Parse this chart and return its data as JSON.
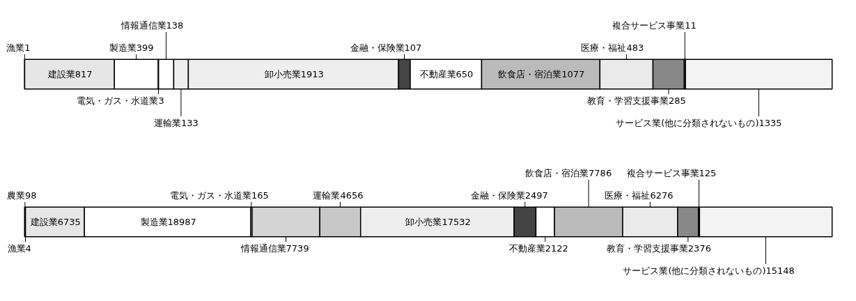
{
  "chart_data": [
    {
      "type": "bar",
      "orientation": "horizontal",
      "stacked": true,
      "categories": [
        null
      ],
      "data_labels": true,
      "tick_labels": false,
      "series": [
        {
          "name": "漁業",
          "color": "#ffffff",
          "values": [
            1
          ]
        },
        {
          "name": "建設業",
          "color": "#e6e6e6",
          "values": [
            817
          ]
        },
        {
          "name": "製造業",
          "color": "#ffffff",
          "values": [
            399
          ]
        },
        {
          "name": "電気・ガス・水道業",
          "color": "#d9d9d9",
          "values": [
            3
          ]
        },
        {
          "name": "情報通信業",
          "color": "#ffffff",
          "values": [
            138
          ]
        },
        {
          "name": "運輸業",
          "color": "#eeeeee",
          "values": [
            133
          ]
        },
        {
          "name": "卸小売業",
          "color": "#eeeeee",
          "values": [
            1913
          ]
        },
        {
          "name": "金融・保険業",
          "color": "#444444",
          "values": [
            107
          ]
        },
        {
          "name": "不動産業",
          "color": "#ffffff",
          "values": [
            650
          ]
        },
        {
          "name": "飲食店・宿泊業",
          "color": "#bbbbbb",
          "values": [
            1077
          ]
        },
        {
          "name": "医療・福祉",
          "color": "#eaeaea",
          "values": [
            483
          ]
        },
        {
          "name": "教育・学習支援事業",
          "color": "#888888",
          "values": [
            285
          ]
        },
        {
          "name": "複合サービス事業",
          "color": "#ffffff",
          "values": [
            11
          ]
        },
        {
          "name": "サービス業(他に分類されないもの)",
          "color": "#f3f3f3",
          "values": [
            1335
          ]
        }
      ]
    },
    {
      "type": "bar",
      "orientation": "horizontal",
      "stacked": true,
      "categories": [
        null
      ],
      "data_labels": true,
      "tick_labels": false,
      "series": [
        {
          "name": "農業",
          "color": "#ffffff",
          "values": [
            98
          ]
        },
        {
          "name": "漁業",
          "color": "#ffffff",
          "values": [
            4
          ]
        },
        {
          "name": "建設業",
          "color": "#e6e6e6",
          "values": [
            6735
          ]
        },
        {
          "name": "製造業",
          "color": "#ffffff",
          "values": [
            18987
          ]
        },
        {
          "name": "電気・ガス・水道業",
          "color": "#ffffff",
          "values": [
            165
          ]
        },
        {
          "name": "情報通信業",
          "color": "#d4d4d4",
          "values": [
            7739
          ]
        },
        {
          "name": "運輸業",
          "color": "#c8c8c8",
          "values": [
            4656
          ]
        },
        {
          "name": "卸小売業",
          "color": "#eeeeee",
          "values": [
            17532
          ]
        },
        {
          "name": "金融・保険業",
          "color": "#444444",
          "values": [
            2497
          ]
        },
        {
          "name": "不動産業",
          "color": "#ffffff",
          "values": [
            2122
          ]
        },
        {
          "name": "飲食店・宿泊業",
          "color": "#bbbbbb",
          "values": [
            7786
          ]
        },
        {
          "name": "医療・福祉",
          "color": "#eaeaea",
          "values": [
            6276
          ]
        },
        {
          "name": "教育・学習支援事業",
          "color": "#888888",
          "values": [
            2376
          ]
        },
        {
          "name": "複合サービス事業",
          "color": "#ffffff",
          "values": [
            125
          ]
        },
        {
          "name": "サービス業(他に分類されないもの)",
          "color": "#f3f3f3",
          "values": [
            15148
          ]
        }
      ]
    }
  ]
}
